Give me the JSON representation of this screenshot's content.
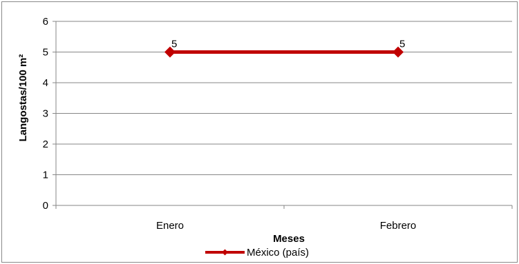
{
  "chart_data": {
    "type": "line",
    "title": "",
    "xlabel": "Meses",
    "ylabel": "Langostas/100 m²",
    "categories": [
      "Enero",
      "Febrero"
    ],
    "series": [
      {
        "name": "México (país)",
        "values": [
          5,
          5
        ],
        "color": "#C00000",
        "marker": "diamond",
        "data_labels": [
          "5",
          "5"
        ]
      }
    ],
    "ylim": [
      0,
      6
    ],
    "yticks": [
      "0",
      "1",
      "2",
      "3",
      "4",
      "5",
      "6"
    ],
    "grid": true,
    "legend_position": "bottom"
  }
}
